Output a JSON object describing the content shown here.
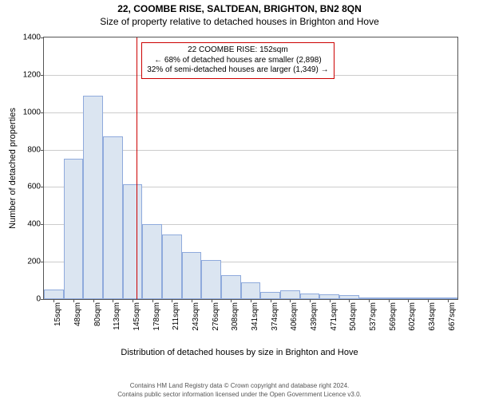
{
  "header": {
    "line1": "22, COOMBE RISE, SALTDEAN, BRIGHTON, BN2 8QN",
    "line2": "Size of property relative to detached houses in Brighton and Hove"
  },
  "chart": {
    "type": "histogram",
    "y_axis": {
      "label": "Number of detached properties",
      "min": 0,
      "max": 1400,
      "tick_step": 200,
      "label_fontsize": 11,
      "tick_fontsize": 10
    },
    "x_axis": {
      "label": "Distribution of detached houses by size in Brighton and Hove",
      "tick_labels": [
        "15sqm",
        "48sqm",
        "80sqm",
        "113sqm",
        "145sqm",
        "178sqm",
        "211sqm",
        "243sqm",
        "276sqm",
        "308sqm",
        "341sqm",
        "374sqm",
        "406sqm",
        "439sqm",
        "471sqm",
        "504sqm",
        "537sqm",
        "569sqm",
        "602sqm",
        "634sqm",
        "667sqm"
      ],
      "label_fontsize": 11,
      "tick_fontsize": 10
    },
    "bars": {
      "values": [
        50,
        750,
        1090,
        870,
        615,
        400,
        345,
        250,
        210,
        130,
        90,
        40,
        45,
        30,
        25,
        20,
        10,
        8,
        6,
        4,
        3
      ],
      "fill_color": "#dbe5f1",
      "border_color": "#8faadc",
      "width_ratio": 1.0
    },
    "reference_line": {
      "x_value_sqm": 152,
      "color": "#cc0000"
    },
    "annotation": {
      "lines": [
        "22 COOMBE RISE: 152sqm",
        "← 68% of detached houses are smaller (2,898)",
        "32% of semi-detached houses are larger (1,349) →"
      ],
      "border_color": "#cc0000",
      "fontsize": 10
    },
    "background_color": "#ffffff",
    "border_color": "#555555"
  },
  "footer": {
    "line1": "Contains HM Land Registry data © Crown copyright and database right 2024.",
    "line2": "Contains public sector information licensed under the Open Government Licence v3.0."
  }
}
